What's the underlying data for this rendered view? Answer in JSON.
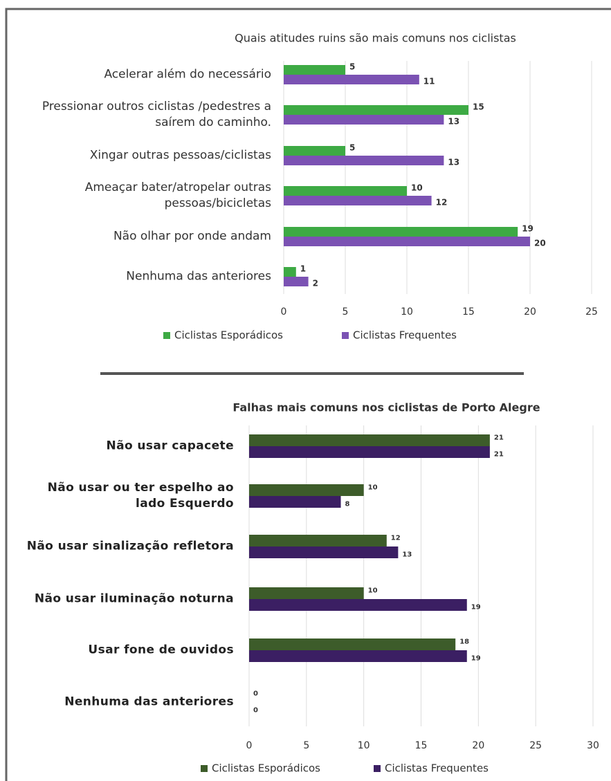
{
  "chart_data": [
    {
      "type": "bar",
      "orientation": "horizontal",
      "title": "Quais atitudes ruins são mais comuns nos ciclistas",
      "categories": [
        "Acelerar além do necessário",
        "Pressionar outros ciclistas /pedestres a saírem do caminho.",
        "Xingar outras pessoas/ciclistas",
        "Ameaçar bater/atropelar outras pessoas/bicicletas",
        "Não olhar por onde andam",
        "Nenhuma das anteriores"
      ],
      "series": [
        {
          "name": "Ciclistas Esporádicos",
          "color": "#3daa44",
          "values": [
            5,
            15,
            5,
            10,
            19,
            1
          ]
        },
        {
          "name": "Ciclistas Frequentes",
          "color": "#7b52b3",
          "values": [
            11,
            13,
            13,
            12,
            20,
            2
          ]
        }
      ],
      "xlim": [
        0,
        25
      ],
      "xticks": [
        0,
        5,
        10,
        15,
        20,
        25
      ],
      "grid": true,
      "legend": "bottom"
    },
    {
      "type": "bar",
      "orientation": "horizontal",
      "title": "Falhas mais comuns nos ciclistas de Porto Alegre",
      "categories": [
        "Não usar capacete",
        "Não usar ou ter espelho ao lado Esquerdo",
        "Não usar sinalização refletora",
        "Não usar iluminação noturna",
        "Usar fone de ouvidos",
        "Nenhuma das anteriores"
      ],
      "series": [
        {
          "name": "Ciclistas Esporádicos",
          "color": "#3d5c2a",
          "values": [
            21,
            10,
            12,
            10,
            18,
            0
          ]
        },
        {
          "name": "Ciclistas Frequentes",
          "color": "#3b1f63",
          "values": [
            21,
            8,
            13,
            19,
            19,
            0
          ]
        }
      ],
      "xlim": [
        0,
        30
      ],
      "xticks": [
        0,
        5,
        10,
        15,
        20,
        25,
        30
      ],
      "grid": true,
      "legend": "bottom"
    }
  ]
}
